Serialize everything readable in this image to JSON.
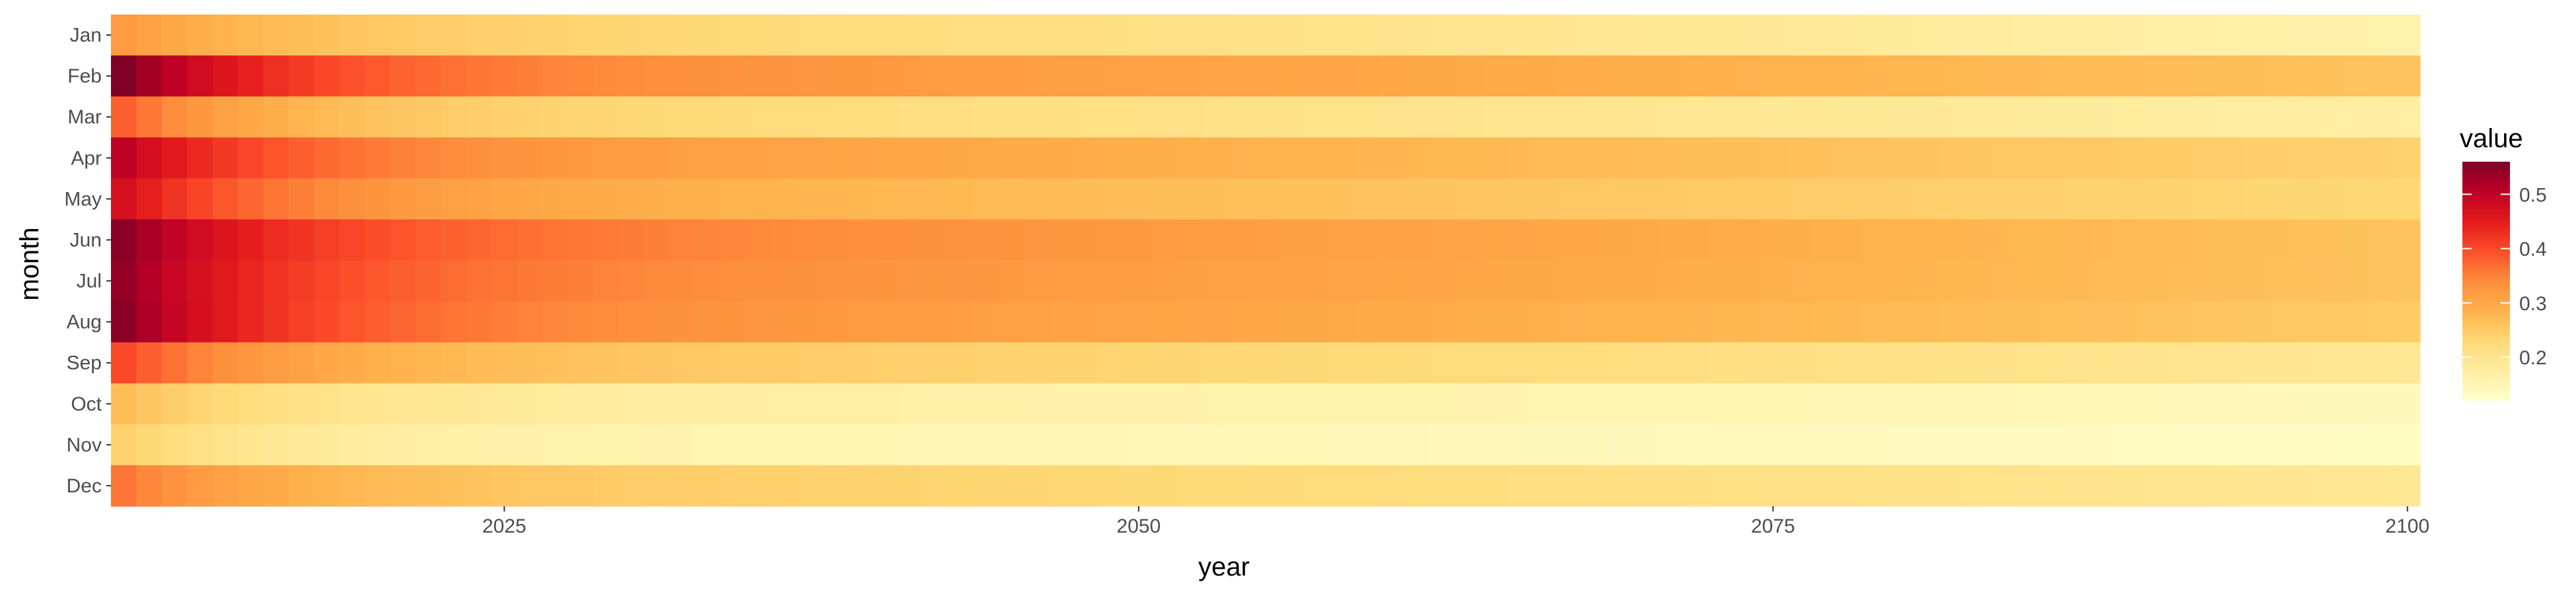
{
  "chart_data": {
    "type": "heatmap",
    "title": "",
    "xlabel": "year",
    "ylabel": "month",
    "x_start": 2010,
    "x_end": 2100,
    "x_ticks": [
      2025,
      2050,
      2075,
      2100
    ],
    "x_tick_labels": [
      "2025",
      "2050",
      "2075",
      "2100"
    ],
    "months": [
      "Jan",
      "Feb",
      "Mar",
      "Apr",
      "May",
      "Jun",
      "Jul",
      "Aug",
      "Sep",
      "Oct",
      "Nov",
      "Dec"
    ],
    "value_range": [
      0.12,
      0.56
    ],
    "color_scale": [
      "#ffffcc",
      "#ffeda0",
      "#fed976",
      "#feb24c",
      "#fd8d3c",
      "#fc4e2a",
      "#e31a1c",
      "#bd0026",
      "#800026"
    ],
    "legend": {
      "title": "value",
      "ticks": [
        0.2,
        0.3,
        0.4,
        0.5
      ],
      "tick_labels": [
        "0.2",
        "0.3",
        "0.4",
        "0.5"
      ],
      "position": "right"
    },
    "grid": false,
    "series": [
      {
        "name": "Jan",
        "start": 0.32,
        "mid": 0.25,
        "end": 0.16
      },
      {
        "name": "Feb",
        "start": 0.56,
        "mid": 0.35,
        "end": 0.26
      },
      {
        "name": "Mar",
        "start": 0.38,
        "mid": 0.24,
        "end": 0.17
      },
      {
        "name": "Apr",
        "start": 0.5,
        "mid": 0.33,
        "end": 0.24
      },
      {
        "name": "May",
        "start": 0.47,
        "mid": 0.3,
        "end": 0.23
      },
      {
        "name": "Jun",
        "start": 0.55,
        "mid": 0.37,
        "end": 0.26
      },
      {
        "name": "Jul",
        "start": 0.54,
        "mid": 0.36,
        "end": 0.26
      },
      {
        "name": "Aug",
        "start": 0.55,
        "mid": 0.35,
        "end": 0.25
      },
      {
        "name": "Sep",
        "start": 0.4,
        "mid": 0.27,
        "end": 0.19
      },
      {
        "name": "Oct",
        "start": 0.27,
        "mid": 0.18,
        "end": 0.14
      },
      {
        "name": "Nov",
        "start": 0.24,
        "mid": 0.16,
        "end": 0.13
      },
      {
        "name": "Dec",
        "start": 0.36,
        "mid": 0.26,
        "end": 0.19
      }
    ]
  }
}
